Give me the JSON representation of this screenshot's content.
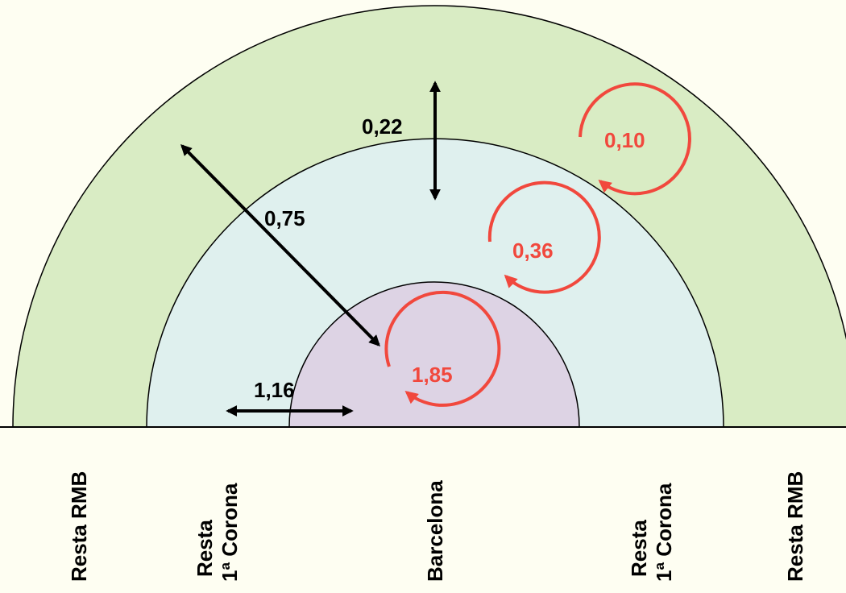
{
  "colors": {
    "background": "#fefef2",
    "outer_ring": "#d9ecc4",
    "middle_ring": "#dff0ee",
    "inner_core": "#ddd3e4",
    "outline": "#000000",
    "internal_flow": "#f1483d"
  },
  "flows": {
    "outer_to_middle": "0,22",
    "outer_to_core": "0,75",
    "middle_to_core": "1,16"
  },
  "internal_flows": {
    "outer": "0,10",
    "middle": "0,36",
    "core": "1,85"
  },
  "zones": {
    "left_outer": "Resta RMB",
    "left_middle_line1": "Resta",
    "left_middle_line2": "1ª Corona",
    "center": "Barcelona",
    "right_middle_line1": "Resta",
    "right_middle_line2": "1ª Corona",
    "right_outer": "Resta RMB"
  }
}
